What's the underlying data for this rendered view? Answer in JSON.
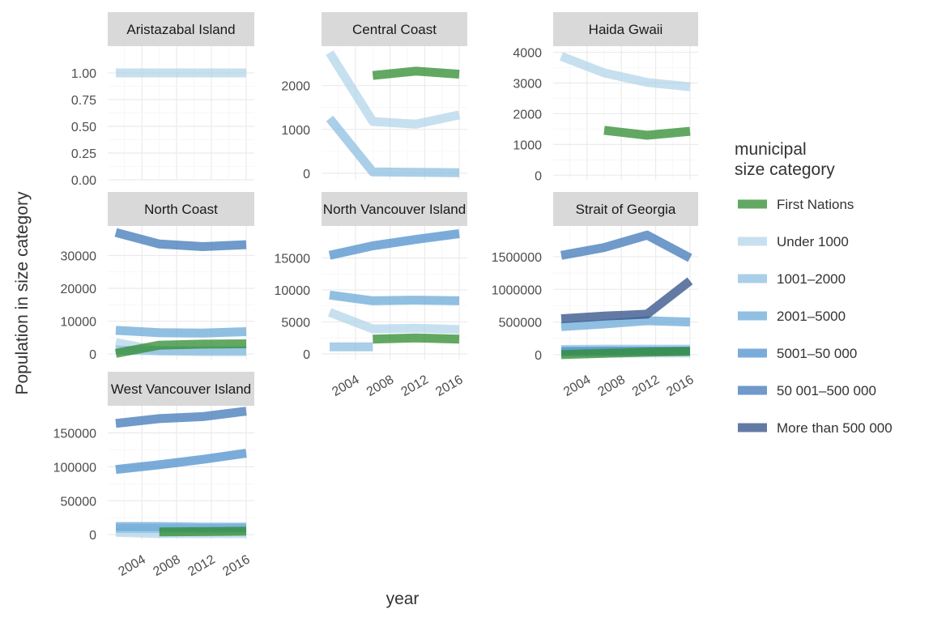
{
  "chart_data": {
    "type": "line",
    "xlabel": "year",
    "ylabel": "Population in size category",
    "x_ticks": [
      2004,
      2008,
      2012,
      2016
    ],
    "x_range": [
      2001,
      2016
    ],
    "grid": true,
    "legend": {
      "title_lines": [
        "municipal",
        "size category"
      ],
      "placement": "right",
      "entries": [
        {
          "name": "First Nations",
          "color": "#2E8B2E",
          "opacity": 0.75
        },
        {
          "name": "Under 1000",
          "color": "#A9D0E6",
          "opacity": 0.65
        },
        {
          "name": "1001–2000",
          "color": "#8DBFE0",
          "opacity": 0.75
        },
        {
          "name": "2001–5000",
          "color": "#6BAAD8",
          "opacity": 0.75
        },
        {
          "name": "5001–50 000",
          "color": "#4F90CC",
          "opacity": 0.75
        },
        {
          "name": "50 001–500 000",
          "color": "#3F78B8",
          "opacity": 0.75
        },
        {
          "name": "More than 500 000",
          "color": "#2F4F86",
          "opacity": 0.75
        }
      ]
    },
    "panels": [
      {
        "title": "Aristazabal Island",
        "ylim": [
          0,
          1.25
        ],
        "y_ticks": [
          0,
          0.25,
          0.5,
          0.75,
          1.0
        ],
        "y_tick_labels": [
          "0.00",
          "0.25",
          "0.50",
          "0.75",
          "1.00"
        ],
        "show_x_ticks": false,
        "series": [
          {
            "category": "Under 1000",
            "x": [
              2001,
              2006,
              2011,
              2016
            ],
            "y": [
              1,
              1,
              1,
              1
            ]
          }
        ]
      },
      {
        "title": "Central Coast",
        "ylim": [
          -150,
          2900
        ],
        "y_ticks": [
          0,
          1000,
          2000
        ],
        "y_tick_labels": [
          "0",
          "1000",
          "2000"
        ],
        "show_x_ticks": false,
        "series": [
          {
            "category": "Under 1000",
            "x": [
              2001,
              2006,
              2011,
              2016
            ],
            "y": [
              2750,
              1180,
              1120,
              1330
            ]
          },
          {
            "category": "1001–2000",
            "x": [
              2001,
              2006,
              2011,
              2016
            ],
            "y": [
              1250,
              30,
              20,
              10
            ]
          },
          {
            "category": "First Nations",
            "x": [
              2006,
              2011,
              2016
            ],
            "y": [
              2230,
              2330,
              2260
            ]
          }
        ]
      },
      {
        "title": "Haida Gwaii",
        "ylim": [
          -150,
          4200
        ],
        "y_ticks": [
          0,
          1000,
          2000,
          3000,
          4000
        ],
        "y_tick_labels": [
          "0",
          "1000",
          "2000",
          "3000",
          "4000"
        ],
        "show_x_ticks": false,
        "series": [
          {
            "category": "Under 1000",
            "x": [
              2001,
              2006,
              2011,
              2016
            ],
            "y": [
              3870,
              3330,
              3020,
              2880
            ]
          },
          {
            "category": "First Nations",
            "x": [
              2006,
              2011,
              2016
            ],
            "y": [
              1460,
              1300,
              1430
            ]
          }
        ]
      },
      {
        "title": "North Coast",
        "ylim": [
          -1700,
          39000
        ],
        "y_ticks": [
          0,
          10000,
          20000,
          30000
        ],
        "y_tick_labels": [
          "0",
          "10000",
          "20000",
          "30000"
        ],
        "show_x_ticks": false,
        "series": [
          {
            "category": "Under 1000",
            "x": [
              2001,
              2006,
              2011,
              2016
            ],
            "y": [
              3500,
              1000,
              700,
              700
            ]
          },
          {
            "category": "1001–2000",
            "x": [
              2001,
              2006,
              2011,
              2016
            ],
            "y": [
              1200,
              1000,
              1000,
              1000
            ]
          },
          {
            "category": "2001–5000",
            "x": [
              2001,
              2006,
              2011,
              2016
            ],
            "y": [
              7200,
              6500,
              6400,
              6800
            ]
          },
          {
            "category": "50 001–500 000",
            "x": [
              2001,
              2006,
              2011,
              2016
            ],
            "y": [
              37000,
              33500,
              32700,
              33300
            ]
          },
          {
            "category": "First Nations",
            "x": [
              2001,
              2006,
              2011,
              2016
            ],
            "y": [
              200,
              2700,
              3000,
              3100
            ]
          }
        ]
      },
      {
        "title": "North Vancouver Island",
        "ylim": [
          -900,
          20000
        ],
        "y_ticks": [
          0,
          5000,
          10000,
          15000
        ],
        "y_tick_labels": [
          "0",
          "5000",
          "10000",
          "15000"
        ],
        "show_x_ticks": true,
        "series": [
          {
            "category": "Under 1000",
            "x": [
              2001,
              2006,
              2011,
              2016
            ],
            "y": [
              6500,
              3900,
              4000,
              3800
            ]
          },
          {
            "category": "1001–2000",
            "x": [
              2001,
              2006
            ],
            "y": [
              1100,
              1100
            ]
          },
          {
            "category": "2001–5000",
            "x": [
              2001,
              2006,
              2011,
              2016
            ],
            "y": [
              9200,
              8300,
              8400,
              8300
            ]
          },
          {
            "category": "5001–50 000",
            "x": [
              2001,
              2006,
              2011,
              2016
            ],
            "y": [
              15400,
              16900,
              17900,
              18800
            ]
          },
          {
            "category": "First Nations",
            "x": [
              2006,
              2011,
              2016
            ],
            "y": [
              2300,
              2500,
              2300
            ]
          }
        ]
      },
      {
        "title": "Strait of Georgia",
        "ylim": [
          -75000,
          1970000
        ],
        "y_ticks": [
          0,
          500000,
          1000000,
          1500000
        ],
        "y_tick_labels": [
          "0",
          "500000",
          "1000000",
          "1500000"
        ],
        "show_x_ticks": true,
        "series": [
          {
            "category": "Under 1000",
            "x": [
              2001,
              2006,
              2011,
              2016
            ],
            "y": [
              30000,
              25000,
              25000,
              25000
            ]
          },
          {
            "category": "1001–2000",
            "x": [
              2001,
              2006,
              2011,
              2016
            ],
            "y": [
              80000,
              85000,
              85000,
              85000
            ]
          },
          {
            "category": "2001–5000",
            "x": [
              2001,
              2006,
              2011,
              2016
            ],
            "y": [
              430000,
              470000,
              520000,
              500000
            ]
          },
          {
            "category": "5001–50 000",
            "x": [
              2001,
              2006,
              2011,
              2016
            ],
            "y": [
              50000,
              55000,
              55000,
              55000
            ]
          },
          {
            "category": "50 001–500 000",
            "x": [
              2001,
              2006,
              2011,
              2016
            ],
            "y": [
              1520000,
              1640000,
              1830000,
              1480000
            ]
          },
          {
            "category": "More than 500 000",
            "x": [
              2001,
              2006,
              2011,
              2016
            ],
            "y": [
              550000,
              590000,
              620000,
              1130000
            ]
          },
          {
            "category": "First Nations",
            "x": [
              2001,
              2006,
              2011,
              2016
            ],
            "y": [
              0,
              20000,
              40000,
              50000
            ]
          }
        ]
      },
      {
        "title": "West Vancouver Island",
        "ylim": [
          -7000,
          190000
        ],
        "y_ticks": [
          0,
          50000,
          100000,
          150000
        ],
        "y_tick_labels": [
          "0",
          "50000",
          "100000",
          "150000"
        ],
        "show_x_ticks": true,
        "series": [
          {
            "category": "Under 1000",
            "x": [
              2001,
              2006,
              2011,
              2016
            ],
            "y": [
              3500,
              1500,
              1500,
              1500
            ]
          },
          {
            "category": "1001–2000",
            "x": [
              2001,
              2006,
              2011,
              2016
            ],
            "y": [
              9000,
              9000,
              9000,
              9000
            ]
          },
          {
            "category": "2001–5000",
            "x": [
              2001,
              2006,
              2011,
              2016
            ],
            "y": [
              12000,
              12000,
              11000,
              11000
            ]
          },
          {
            "category": "5001–50 000",
            "x": [
              2001,
              2006,
              2011,
              2016
            ],
            "y": [
              96000,
              103000,
              111000,
              120000
            ]
          },
          {
            "category": "50 001–500 000",
            "x": [
              2001,
              2006,
              2011,
              2016
            ],
            "y": [
              164000,
              171000,
              174000,
              182000
            ]
          },
          {
            "category": "First Nations",
            "x": [
              2006,
              2011,
              2016
            ],
            "y": [
              4000,
              4500,
              5000
            ]
          }
        ]
      }
    ]
  }
}
